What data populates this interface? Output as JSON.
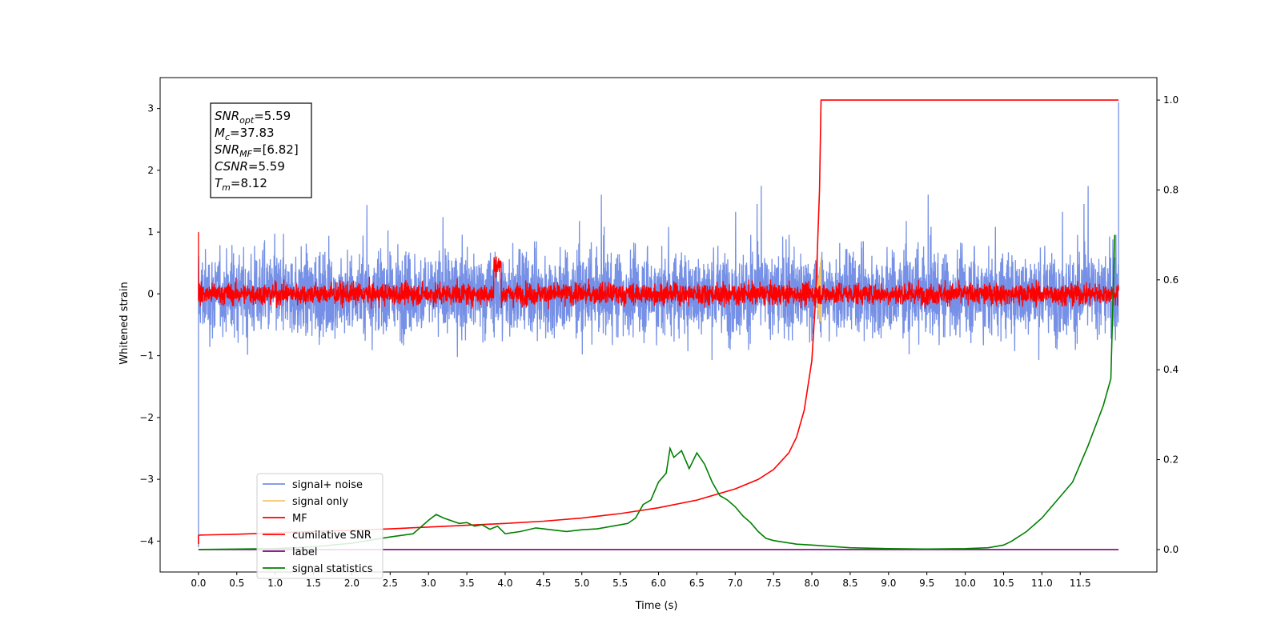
{
  "chart_data": {
    "type": "line",
    "xlabel": "Time (s)",
    "ylabel": "Whitened strain",
    "xlim": [
      -0.5,
      12.5
    ],
    "ylim": [
      -4.5,
      3.5
    ],
    "y2lim": [
      -0.05,
      1.05
    ],
    "grid": false,
    "legend_position": "lower-left",
    "x_ticks": [
      "0.0",
      "0.5",
      "1.0",
      "1.5",
      "2.0",
      "2.5",
      "3.0",
      "3.5",
      "4.0",
      "4.5",
      "5.0",
      "5.5",
      "6.0",
      "6.5",
      "7.0",
      "7.5",
      "8.0",
      "8.5",
      "9.0",
      "9.5",
      "10.0",
      "10.5",
      "11.0",
      "11.5"
    ],
    "y_ticks": [
      "3",
      "2",
      "1",
      "0",
      "−1",
      "−2",
      "−3",
      "−4"
    ],
    "y2_ticks": [
      "1.0",
      "0.8",
      "0.6",
      "0.4",
      "0.2",
      "0.0"
    ],
    "annotation": [
      {
        "sym": "SNR",
        "sub": "opt",
        "value": "=5.59"
      },
      {
        "sym": "M",
        "sub": "c",
        "value": "=37.83"
      },
      {
        "sym": "SNR",
        "sub": "MF",
        "value": "=[6.82]"
      },
      {
        "sym": "CSNR",
        "sub": "",
        "value": "=5.59"
      },
      {
        "sym": "T",
        "sub": "m",
        "value": "=8.12"
      }
    ],
    "series": [
      {
        "name": "signal+ noise",
        "color": "#7590e6",
        "axis": "left",
        "noise_std": 0.55,
        "range": [
          -1.5,
          2.1
        ],
        "x": [
          0,
          12
        ]
      },
      {
        "name": "signal only",
        "color": "#f5c56e",
        "axis": "left",
        "range": [
          -0.6,
          0.6
        ],
        "x": [
          8.05,
          8.12
        ]
      },
      {
        "name": "MF",
        "color": "#ff0000",
        "axis": "left",
        "noise_std": 0.16,
        "range": [
          -0.4,
          0.8
        ],
        "x": [
          0,
          12
        ]
      },
      {
        "name": "cumilative SNR",
        "color": "#ff0000",
        "axis": "right",
        "x": [
          0,
          0.5,
          1,
          1.5,
          2,
          2.5,
          3,
          3.5,
          4,
          4.5,
          5,
          5.5,
          6,
          6.5,
          7,
          7.3,
          7.5,
          7.7,
          7.8,
          7.9,
          8.0,
          8.05,
          8.1,
          8.12,
          8.5,
          9,
          10,
          11,
          12
        ],
        "values": [
          0.032,
          0.034,
          0.037,
          0.04,
          0.043,
          0.046,
          0.05,
          0.054,
          0.058,
          0.063,
          0.07,
          0.08,
          0.093,
          0.11,
          0.135,
          0.156,
          0.178,
          0.215,
          0.25,
          0.31,
          0.42,
          0.56,
          0.8,
          1.0,
          1.0,
          1.0,
          1.0,
          1.0,
          1.0
        ]
      },
      {
        "name": "label",
        "color": "#800080",
        "axis": "right",
        "x": [
          0,
          12
        ],
        "values": [
          0.0,
          0.0
        ]
      },
      {
        "name": "signal statistics",
        "color": "#008000",
        "axis": "right",
        "x": [
          0,
          1,
          1.5,
          2,
          2.5,
          2.8,
          3.0,
          3.1,
          3.2,
          3.4,
          3.5,
          3.6,
          3.7,
          3.8,
          3.9,
          4.0,
          4.2,
          4.4,
          4.6,
          4.8,
          5.0,
          5.2,
          5.4,
          5.6,
          5.7,
          5.8,
          5.9,
          6.0,
          6.1,
          6.15,
          6.2,
          6.3,
          6.35,
          6.4,
          6.5,
          6.6,
          6.7,
          6.8,
          6.9,
          7.0,
          7.1,
          7.2,
          7.3,
          7.4,
          7.5,
          7.8,
          8.0,
          8.5,
          9.0,
          9.5,
          10.0,
          10.3,
          10.5,
          10.6,
          10.8,
          11.0,
          11.2,
          11.4,
          11.6,
          11.8,
          11.9,
          11.95
        ],
        "values": [
          0.0,
          0.002,
          0.006,
          0.014,
          0.028,
          0.035,
          0.065,
          0.078,
          0.07,
          0.058,
          0.06,
          0.052,
          0.055,
          0.045,
          0.052,
          0.035,
          0.04,
          0.048,
          0.044,
          0.04,
          0.044,
          0.046,
          0.052,
          0.058,
          0.07,
          0.1,
          0.11,
          0.15,
          0.17,
          0.225,
          0.205,
          0.22,
          0.2,
          0.18,
          0.215,
          0.19,
          0.15,
          0.12,
          0.11,
          0.095,
          0.075,
          0.06,
          0.04,
          0.025,
          0.02,
          0.012,
          0.01,
          0.004,
          0.002,
          0.001,
          0.002,
          0.004,
          0.01,
          0.018,
          0.04,
          0.07,
          0.11,
          0.15,
          0.23,
          0.32,
          0.38,
          0.7
        ]
      }
    ]
  }
}
